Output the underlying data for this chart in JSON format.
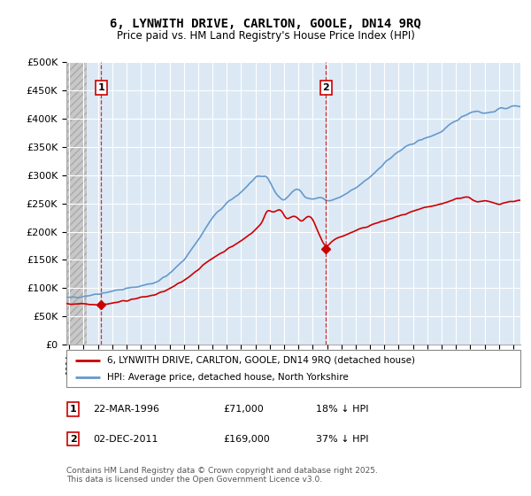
{
  "title": "6, LYNWITH DRIVE, CARLTON, GOOLE, DN14 9RQ",
  "subtitle": "Price paid vs. HM Land Registry's House Price Index (HPI)",
  "ylabel_ticks": [
    "£0",
    "£50K",
    "£100K",
    "£150K",
    "£200K",
    "£250K",
    "£300K",
    "£350K",
    "£400K",
    "£450K",
    "£500K"
  ],
  "ytick_values": [
    0,
    50000,
    100000,
    150000,
    200000,
    250000,
    300000,
    350000,
    400000,
    450000,
    500000
  ],
  "ylim": [
    0,
    500000
  ],
  "xlim_start": 1993.8,
  "xlim_end": 2025.5,
  "line1_color": "#cc0000",
  "line2_color": "#6699cc",
  "point1_date": 1996.22,
  "point1_value": 71000,
  "point2_date": 2011.92,
  "point2_value": 169000,
  "label1": "1",
  "label2": "2",
  "legend1": "6, LYNWITH DRIVE, CARLTON, GOOLE, DN14 9RQ (detached house)",
  "legend2": "HPI: Average price, detached house, North Yorkshire",
  "annotation1_date": "22-MAR-1996",
  "annotation1_price": "£71,000",
  "annotation1_hpi": "18% ↓ HPI",
  "annotation2_date": "02-DEC-2011",
  "annotation2_price": "£169,000",
  "annotation2_hpi": "37% ↓ HPI",
  "footer": "Contains HM Land Registry data © Crown copyright and database right 2025.\nThis data is licensed under the Open Government Licence v3.0.",
  "bg_color": "#ffffff",
  "plot_bg_color": "#dce9f5",
  "grid_color": "#ffffff",
  "hatch_color": "#c8c8c8"
}
